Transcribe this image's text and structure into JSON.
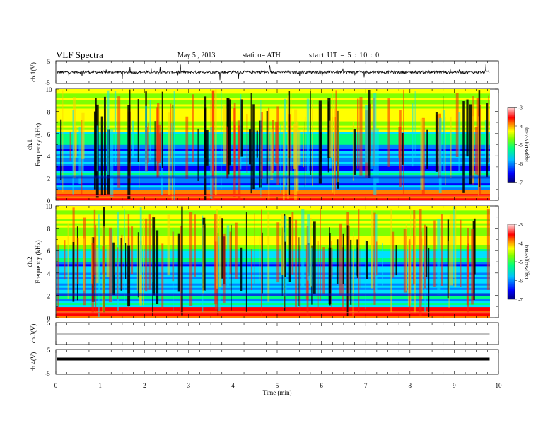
{
  "header": {
    "title": "VLF  Spectra",
    "date": "May 5  , 2013",
    "station": "station= ATH",
    "start_ut": "start  UT  =   5  : 10 : 0"
  },
  "chart_data": [
    {
      "type": "line",
      "panel": "ch1-waveform",
      "ylabel": "ch.1(V)",
      "ylim": [
        -5,
        5
      ],
      "yticks": [
        5,
        -5
      ],
      "xlim": [
        0,
        10
      ],
      "end_time_min": 9.8,
      "baseline": 0,
      "color": "#000000",
      "description_values": {
        "typical_amplitude": 0.6,
        "spike_amplitude": 2.0
      }
    },
    {
      "type": "heatmap",
      "panel": "ch1-spectrogram",
      "ylabel": "ch.1\nFrequency (kHz)",
      "ylabel_line1": "ch.1",
      "ylabel_line2": "Frequency  (kHz)",
      "ylim": [
        0,
        10
      ],
      "yticks": [
        0,
        2,
        4,
        6,
        8,
        10
      ],
      "xlim": [
        0,
        10
      ],
      "end_time_min": 9.8,
      "colorbar": {
        "label": "log(PSD)(V²/Hz)",
        "range": [
          -7,
          -3
        ],
        "ticks": [
          -3,
          -4,
          -5,
          -6,
          -7
        ]
      }
    },
    {
      "type": "heatmap",
      "panel": "ch2-spectrogram",
      "ylabel_line1": "ch.2",
      "ylabel_line2": "Frequency  (kHz)",
      "ylim": [
        0,
        10
      ],
      "yticks": [
        0,
        2,
        4,
        6,
        8,
        10
      ],
      "xlim": [
        0,
        10
      ],
      "end_time_min": 9.8,
      "colorbar": {
        "label": "log(PSD)(V²/Hz)",
        "range": [
          -7,
          -3
        ],
        "ticks": [
          -3,
          -4,
          -5,
          -6,
          -7
        ]
      }
    },
    {
      "type": "line",
      "panel": "ch3-waveform",
      "ylabel": "ch.3(V)",
      "ylim": [
        -5,
        5
      ],
      "yticks": [
        5
      ],
      "xlim": [
        0,
        10
      ],
      "end_time_min": 9.8,
      "baseline": 0
    },
    {
      "type": "line",
      "panel": "ch4-waveform",
      "ylabel": "ch.4(V)",
      "ylim": [
        -5,
        5
      ],
      "yticks": [
        5,
        -5
      ],
      "xlim": [
        0,
        10
      ],
      "end_time_min": 9.8,
      "baseline": 0
    }
  ],
  "x_axis": {
    "label": "Time  (min)",
    "ticks": [
      "0",
      "1",
      "2",
      "3",
      "4",
      "5",
      "6",
      "7",
      "8",
      "9",
      "10"
    ]
  },
  "colors": {
    "colormap": [
      "#000080",
      "#0000ff",
      "#0080ff",
      "#00e0ff",
      "#00ff80",
      "#80ff00",
      "#ffff00",
      "#ff8000",
      "#ff0000",
      "#ffffff"
    ]
  }
}
